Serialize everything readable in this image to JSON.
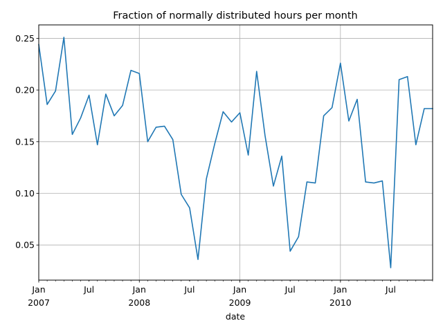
{
  "chart_data": {
    "type": "line",
    "title": "Fraction of normally distributed hours per month",
    "xlabel": "date",
    "ylabel": "",
    "grid": true,
    "xlim": [
      "2007-01",
      "2010-12"
    ],
    "ylim": [
      0.016,
      0.263
    ],
    "x_ticks": [
      {
        "date": "2007-01",
        "label": "Jan",
        "sublabel": "2007"
      },
      {
        "date": "2007-07",
        "label": "Jul",
        "sublabel": ""
      },
      {
        "date": "2008-01",
        "label": "Jan",
        "sublabel": "2008"
      },
      {
        "date": "2008-07",
        "label": "Jul",
        "sublabel": ""
      },
      {
        "date": "2009-01",
        "label": "Jan",
        "sublabel": "2009"
      },
      {
        "date": "2009-07",
        "label": "Jul",
        "sublabel": ""
      },
      {
        "date": "2010-01",
        "label": "Jan",
        "sublabel": "2010"
      },
      {
        "date": "2010-07",
        "label": "Jul",
        "sublabel": ""
      }
    ],
    "y_ticks": [
      {
        "value": 0.05,
        "label": "0.05"
      },
      {
        "value": 0.1,
        "label": "0.10"
      },
      {
        "value": 0.15,
        "label": "0.15"
      },
      {
        "value": 0.2,
        "label": "0.20"
      },
      {
        "value": 0.25,
        "label": "0.25"
      }
    ],
    "series": [
      {
        "color": "#1f77b4",
        "x": [
          "2007-01",
          "2007-02",
          "2007-03",
          "2007-04",
          "2007-05",
          "2007-06",
          "2007-07",
          "2007-08",
          "2007-09",
          "2007-10",
          "2007-11",
          "2007-12",
          "2008-01",
          "2008-02",
          "2008-03",
          "2008-04",
          "2008-05",
          "2008-06",
          "2008-07",
          "2008-08",
          "2008-09",
          "2008-10",
          "2008-11",
          "2008-12",
          "2009-01",
          "2009-02",
          "2009-03",
          "2009-04",
          "2009-05",
          "2009-06",
          "2009-07",
          "2009-08",
          "2009-09",
          "2009-10",
          "2009-11",
          "2009-12",
          "2010-01",
          "2010-02",
          "2010-03",
          "2010-04",
          "2010-05",
          "2010-06",
          "2010-07",
          "2010-08",
          "2010-09",
          "2010-10",
          "2010-11",
          "2010-12"
        ],
        "values": [
          0.244,
          0.186,
          0.199,
          0.251,
          0.157,
          0.173,
          0.195,
          0.147,
          0.196,
          0.175,
          0.185,
          0.219,
          0.216,
          0.15,
          0.164,
          0.165,
          0.152,
          0.099,
          0.086,
          0.036,
          0.114,
          0.148,
          0.179,
          0.169,
          0.178,
          0.137,
          0.218,
          0.156,
          0.107,
          0.136,
          0.044,
          0.058,
          0.111,
          0.11,
          0.175,
          0.183,
          0.226,
          0.17,
          0.191,
          0.111,
          0.11,
          0.112,
          0.028,
          0.21,
          0.213,
          0.147,
          0.182,
          0.182
        ]
      }
    ]
  }
}
